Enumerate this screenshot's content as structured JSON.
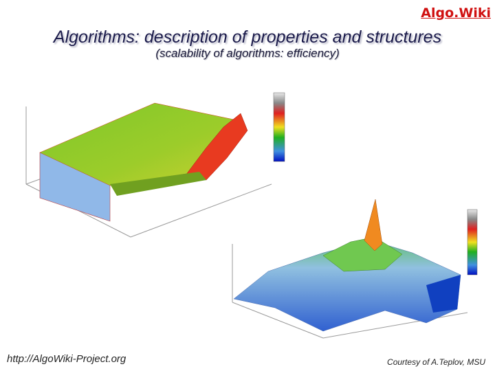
{
  "logo": "Algo.Wiki",
  "header": {
    "title": "Algorithms: description of properties and structures",
    "subtitle": "(scalability of algorithms: efficiency)"
  },
  "footer": {
    "url": "http://AlgoWiki-Project.org",
    "credit": "Courtesy of A.Teplov, MSU"
  }
}
